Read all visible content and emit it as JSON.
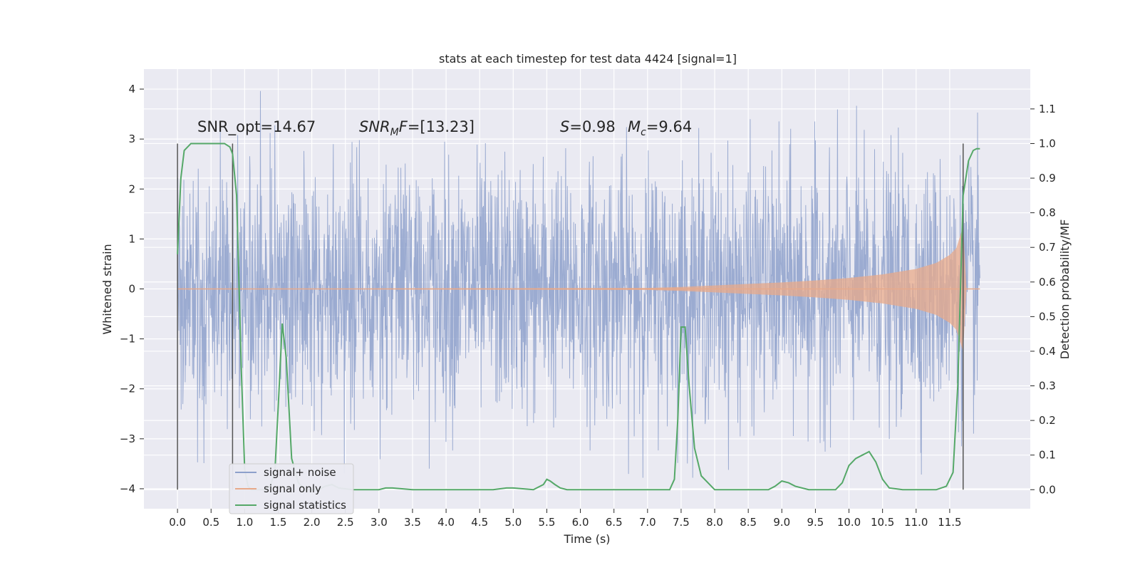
{
  "chart_data": {
    "type": "line",
    "title": "stats at each timestep for test data 4424 [signal=1]",
    "xlabel": "Time (s)",
    "ylabel": "Whitened strain",
    "y2label": "Detection probability/MF",
    "xlim": [
      -0.5,
      12.7
    ],
    "ylim": [
      -4.4,
      4.4
    ],
    "y2lim": [
      -0.055,
      1.215
    ],
    "x_ticks": [
      "0.0",
      "0.5",
      "1.0",
      "1.5",
      "2.0",
      "2.5",
      "3.0",
      "3.5",
      "4.0",
      "4.5",
      "5.0",
      "5.5",
      "6.0",
      "6.5",
      "7.0",
      "7.5",
      "8.0",
      "8.5",
      "9.0",
      "9.5",
      "10.0",
      "10.5",
      "11.0",
      "11.5"
    ],
    "y_ticks": [
      "4",
      "3",
      "2",
      "1",
      "0",
      "−1",
      "−2",
      "−3",
      "−4"
    ],
    "y2_ticks": [
      "1.1",
      "1.0",
      "0.9",
      "0.8",
      "0.7",
      "0.6",
      "0.5",
      "0.4",
      "0.3",
      "0.2",
      "0.1",
      "0.0"
    ],
    "grid": true,
    "legend_position": "lower-left",
    "annotations": {
      "snr_opt": "SNR_opt=14.67",
      "snr_mf_italic": "SNR",
      "snr_mf_sub": "M",
      "snr_mf_italic2": "F",
      "snr_mf_value": "=[13.23]",
      "s_symbol": "S",
      "s_value": "=0.98",
      "mc_symbol": "M",
      "mc_sub": "c",
      "mc_value": "=9.64"
    },
    "vlines": [
      0.0,
      0.82,
      11.7
    ],
    "series": [
      {
        "name": "signal+ noise",
        "color": "#8da0cb",
        "description_values": {
          "t_start": 0.0,
          "t_end": 11.95,
          "typical_amplitude": 1.3,
          "peak_max": 4.02,
          "peak_min": -3.78
        }
      },
      {
        "name": "signal only",
        "color": "#e8a98a",
        "envelope": [
          [
            0.0,
            0.0
          ],
          [
            7.0,
            0.02
          ],
          [
            7.5,
            0.04
          ],
          [
            8.0,
            0.07
          ],
          [
            8.5,
            0.1
          ],
          [
            9.0,
            0.13
          ],
          [
            9.5,
            0.17
          ],
          [
            10.0,
            0.22
          ],
          [
            10.5,
            0.29
          ],
          [
            11.0,
            0.4
          ],
          [
            11.3,
            0.52
          ],
          [
            11.5,
            0.68
          ],
          [
            11.6,
            0.82
          ],
          [
            11.7,
            1.25
          ],
          [
            11.75,
            0.0
          ],
          [
            11.95,
            0.0
          ]
        ]
      },
      {
        "name": "signal statistics",
        "color": "#55a868",
        "x": [
          0.0,
          0.05,
          0.1,
          0.2,
          0.3,
          0.5,
          0.7,
          0.78,
          0.82,
          0.88,
          0.95,
          1.0,
          1.05,
          1.1,
          1.2,
          1.3,
          1.38,
          1.45,
          1.5,
          1.56,
          1.62,
          1.7,
          1.8,
          1.9,
          2.0,
          2.1,
          2.2,
          2.3,
          2.4,
          2.6,
          3.0,
          3.1,
          3.2,
          3.5,
          4.0,
          4.7,
          4.9,
          5.0,
          5.3,
          5.45,
          5.5,
          5.55,
          5.62,
          5.7,
          5.8,
          6.0,
          6.5,
          7.0,
          7.2,
          7.33,
          7.4,
          7.45,
          7.5,
          7.56,
          7.62,
          7.7,
          7.8,
          7.9,
          8.0,
          8.1,
          8.3,
          8.8,
          8.9,
          9.0,
          9.1,
          9.2,
          9.4,
          9.6,
          9.8,
          9.9,
          10.0,
          10.1,
          10.2,
          10.3,
          10.4,
          10.5,
          10.6,
          10.8,
          11.0,
          11.3,
          11.45,
          11.55,
          11.62,
          11.7,
          11.78,
          11.85,
          11.9,
          11.95
        ],
        "values": [
          0.68,
          0.9,
          0.98,
          1.0,
          1.0,
          1.0,
          1.0,
          0.99,
          0.97,
          0.85,
          0.35,
          0.06,
          0.01,
          0.0,
          0.0,
          0.0,
          0.01,
          0.05,
          0.24,
          0.48,
          0.38,
          0.09,
          0.02,
          0.0,
          0.0,
          0.0,
          0.01,
          0.015,
          0.005,
          0.0,
          0.0,
          0.005,
          0.005,
          0.0,
          0.0,
          0.0,
          0.005,
          0.005,
          0.0,
          0.015,
          0.03,
          0.025,
          0.015,
          0.005,
          0.0,
          0.0,
          0.0,
          0.0,
          0.0,
          0.0,
          0.03,
          0.2,
          0.47,
          0.47,
          0.3,
          0.12,
          0.04,
          0.02,
          0.0,
          0.0,
          0.0,
          0.0,
          0.01,
          0.025,
          0.02,
          0.01,
          0.0,
          0.0,
          0.0,
          0.02,
          0.07,
          0.09,
          0.1,
          0.11,
          0.08,
          0.03,
          0.005,
          0.0,
          0.0,
          0.0,
          0.01,
          0.05,
          0.3,
          0.85,
          0.95,
          0.98,
          0.985,
          0.985
        ]
      }
    ]
  }
}
